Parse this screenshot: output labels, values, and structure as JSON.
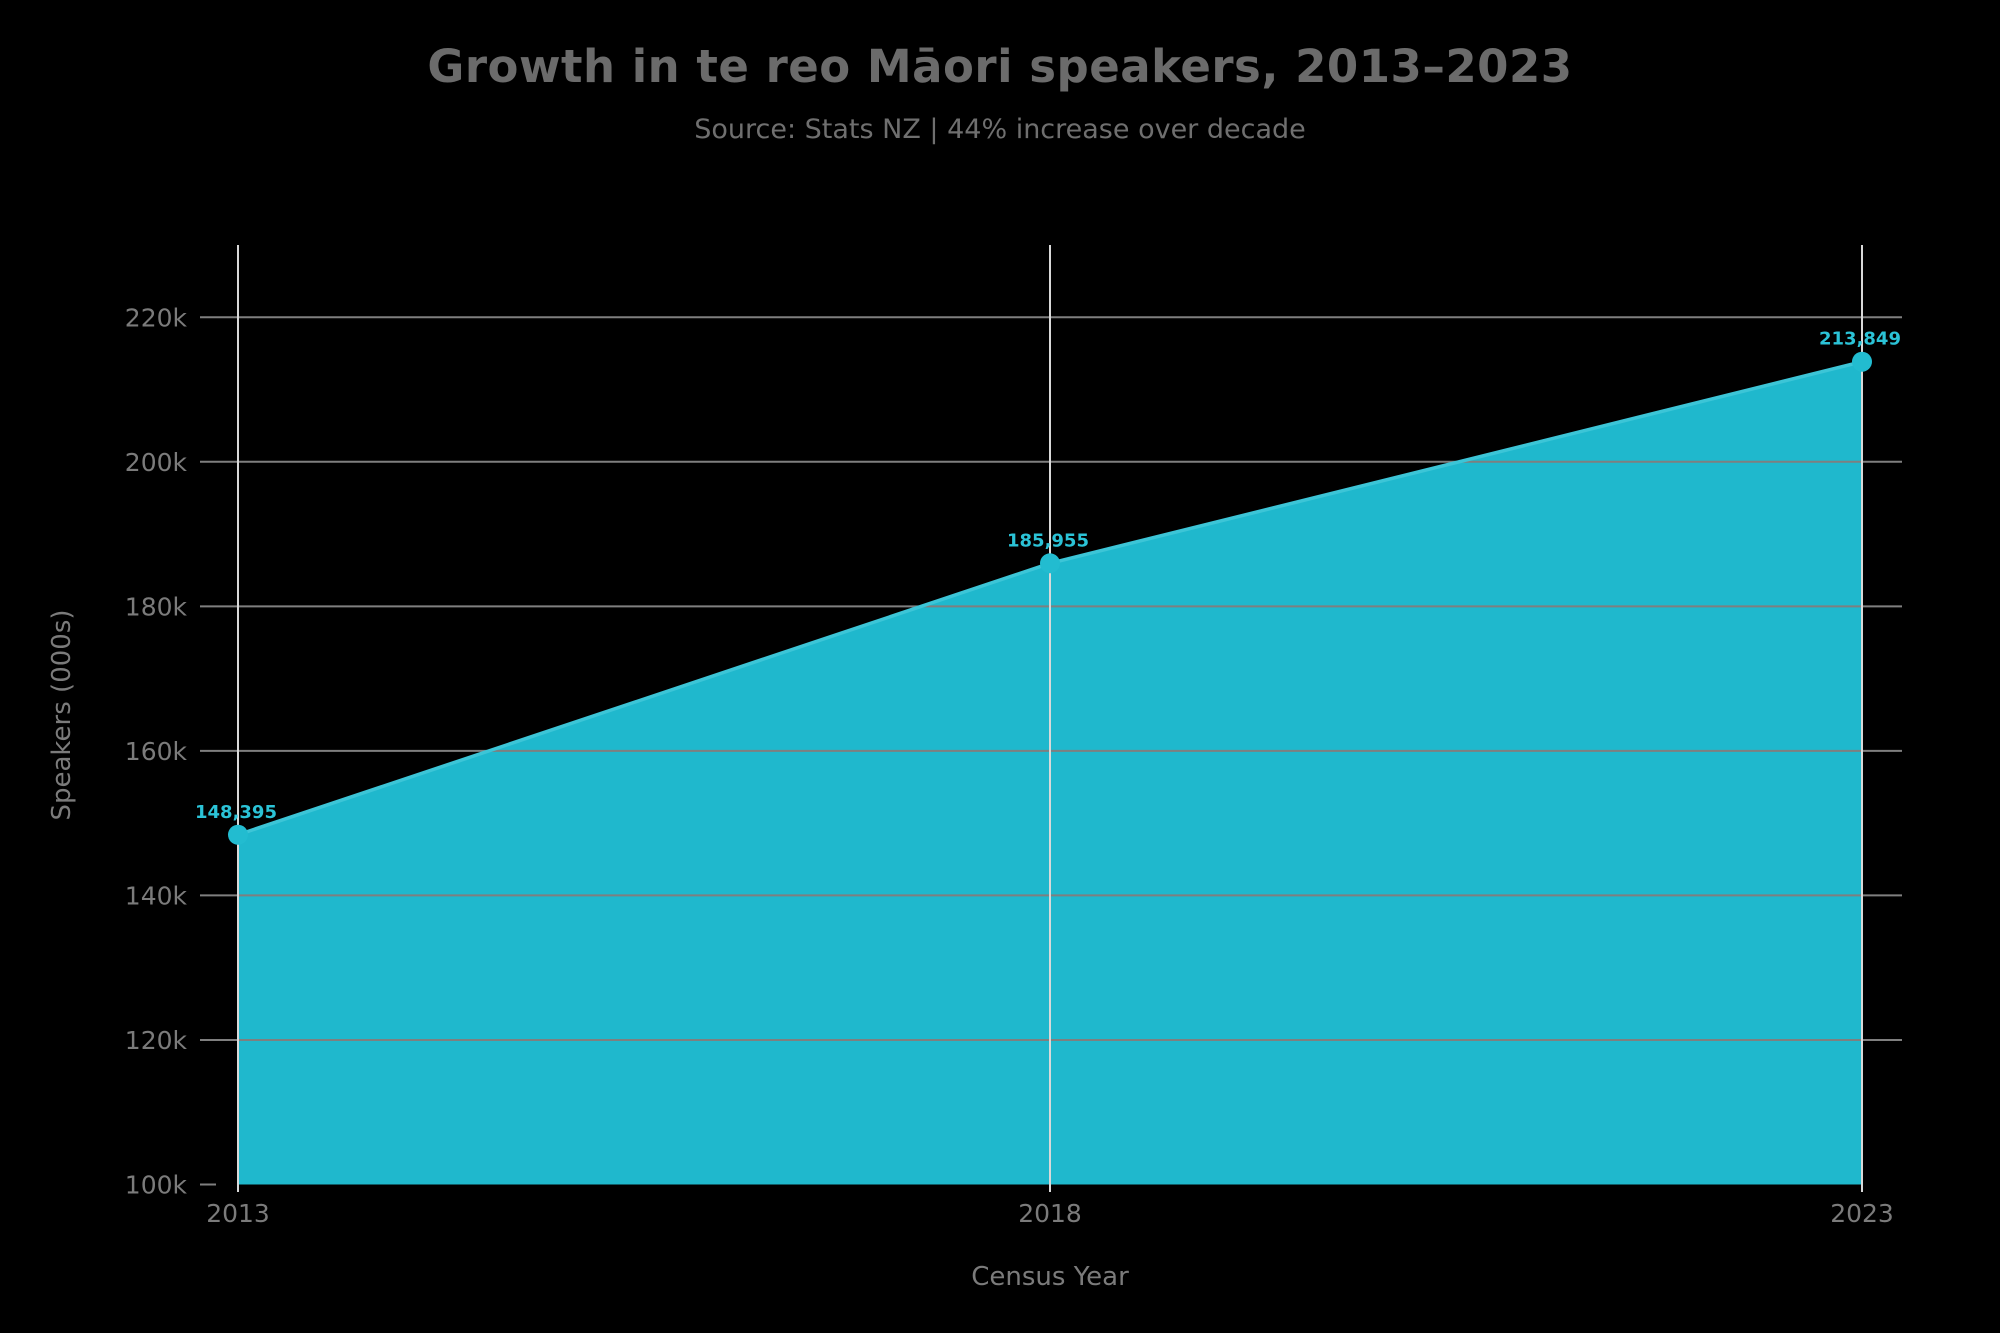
{
  "title": "Growth in te reo Māori speakers, 2013–2023",
  "subtitle": "Source: Stats NZ | 44% increase over decade",
  "chart_data": {
    "type": "area",
    "x": [
      2013,
      2018,
      2023
    ],
    "series": [
      {
        "name": "te reo Māori speakers",
        "values": [
          148395,
          185955,
          213849
        ]
      }
    ],
    "point_labels": [
      "148,395",
      "185,955",
      "213,849"
    ],
    "title": "Growth in te reo Māori speakers, 2013–2023",
    "subtitle": "Source: Stats NZ | 44% increase over decade",
    "xlabel": "Census Year",
    "ylabel": "Speakers (000s)",
    "x_tick_values": [
      2013,
      2018,
      2023
    ],
    "x_tick_labels": [
      "2013",
      "2018",
      "2023"
    ],
    "y_tick_values": [
      100000,
      120000,
      140000,
      160000,
      180000,
      200000,
      220000
    ],
    "y_tick_labels": [
      "100k",
      "120k",
      "140k",
      "160k",
      "180k",
      "200k",
      "220k"
    ],
    "xlim": [
      2013,
      2023
    ],
    "ylim": [
      100000,
      230000
    ],
    "grid": true,
    "legend_position": "none"
  },
  "colors": {
    "background": "#000000",
    "area_fill": "#1fb8cd",
    "line": "#3cc5d7",
    "marker": "#22bcd0",
    "value_label": "#2bc3d7",
    "grid_horizontal": "#7f7f7f",
    "grid_vertical": "#d9d9d9",
    "title": "#6b6b6b",
    "subtitle": "#6f6f6f",
    "tick_label": "#7b7b7b",
    "axis_title": "#7b7b7b"
  }
}
